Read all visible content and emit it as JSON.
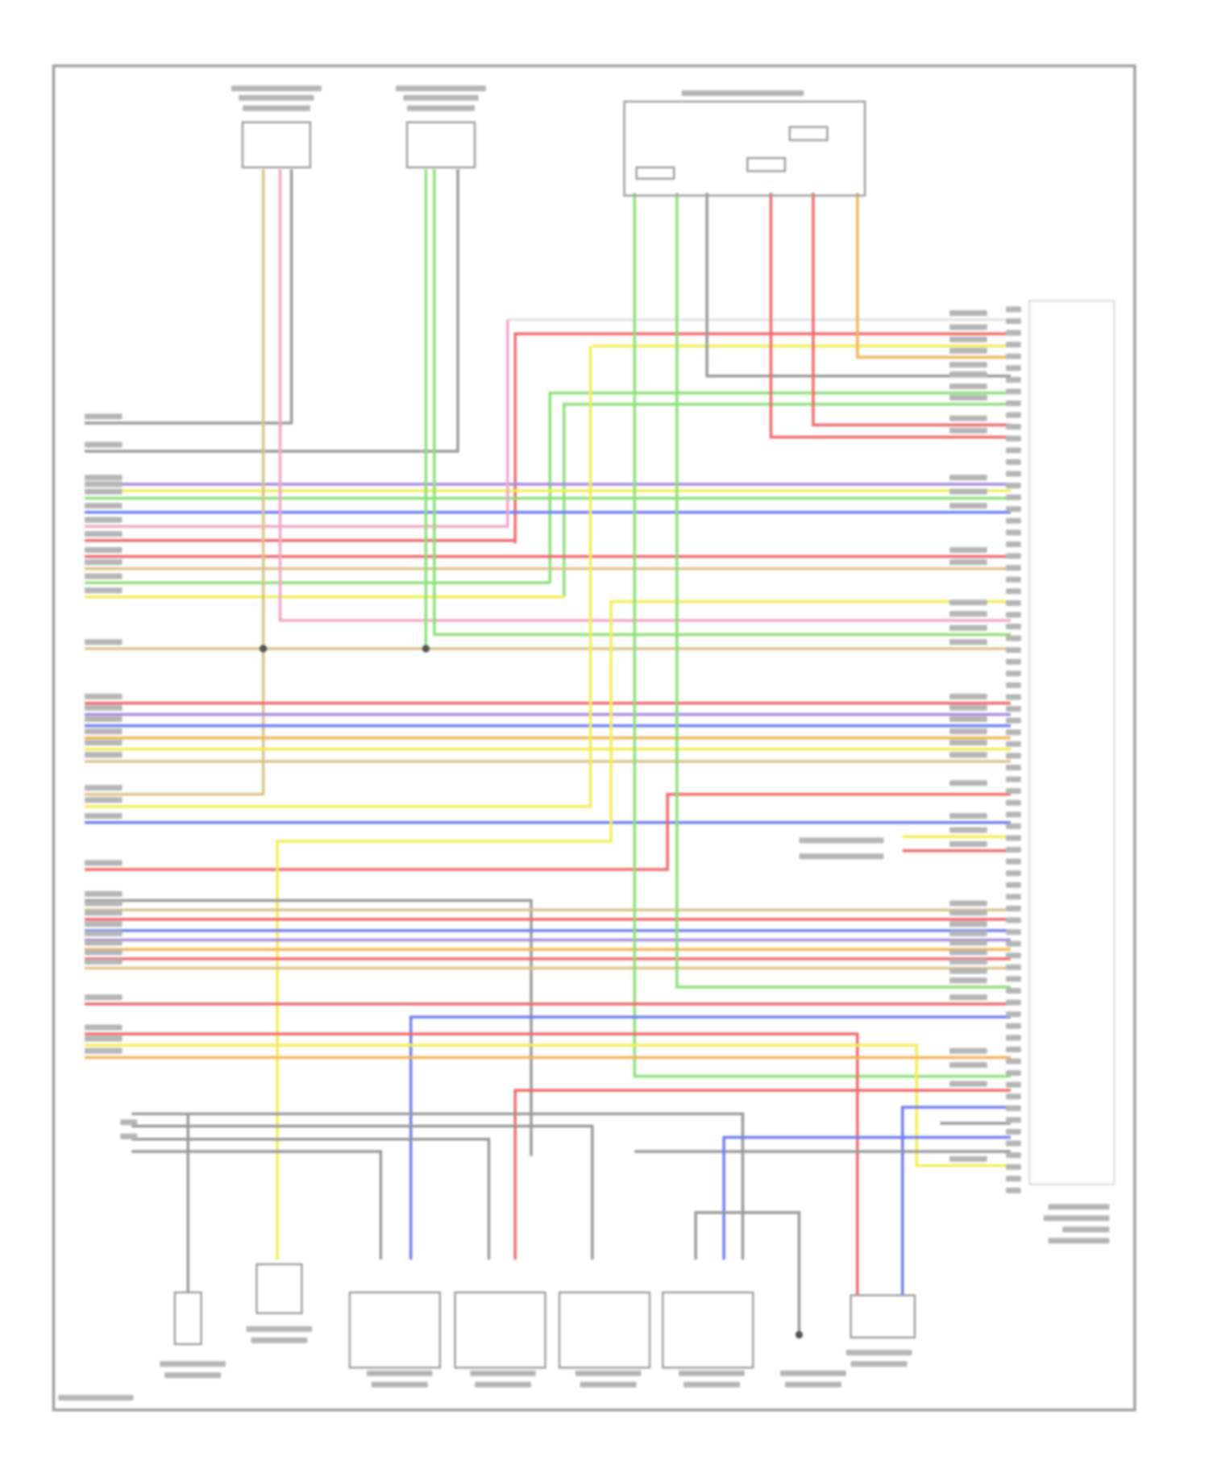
{
  "diagram": {
    "colors": {
      "frame": "#9a9a9a",
      "label_gray": "#b5b5b5",
      "wire_red": "#f06a6a",
      "wire_yellow": "#f2ee5a",
      "wire_orange": "#f3b55a",
      "wire_green": "#8ee07a",
      "wire_blue": "#6f7ff0",
      "wire_purple": "#a68ae0",
      "wire_pink": "#f2a8c8",
      "wire_tan": "#d9c48a",
      "wire_gray": "#9a9a9a",
      "wire_white": "#e6e6e6"
    },
    "note": ""
  }
}
